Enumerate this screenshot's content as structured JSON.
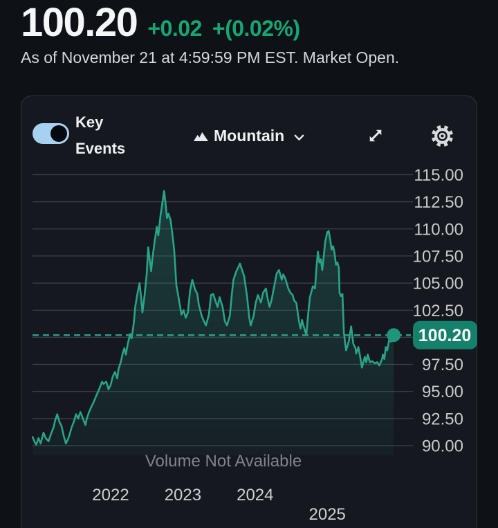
{
  "header": {
    "price": "100.20",
    "change": "+0.02",
    "change_pct": "+(0.02%)",
    "change_color": "#17a673",
    "as_of": "As of November 21 at 4:59:59 PM EST. Market Open."
  },
  "toolbar": {
    "key_events_label": "Key Events",
    "key_events_on": true,
    "toggle_color": "#a7d1f0",
    "chart_type_label": "Mountain",
    "icons": {
      "chart_type": "mountain-icon",
      "dropdown": "chevron-down-icon",
      "expand": "expand-arrows-icon",
      "settings": "gear-icon"
    }
  },
  "chart_data": {
    "type": "area",
    "title": "5-year price history",
    "x_unit": "year (decimal)",
    "x_range": [
      2020.92,
      2025.92
    ],
    "y_range": [
      90,
      115
    ],
    "grid": true,
    "legend": "none",
    "line_color": "#2aa489",
    "dot_color": "#1f9579",
    "badge_color": "#15806b",
    "grid_color": "#3c4349",
    "axis_text_color": "#c7cace",
    "current_price": 100.2,
    "current_price_label": "100.20",
    "volume_note": "Volume Not Available",
    "y_grid_values": [
      115,
      112.5,
      110,
      107.5,
      105,
      102.5,
      100,
      97.5,
      95,
      92.5,
      90
    ],
    "y_ticks": [
      {
        "value": 115,
        "label": "115.00"
      },
      {
        "value": 112.5,
        "label": "112.50"
      },
      {
        "value": 110,
        "label": "110.00"
      },
      {
        "value": 107.5,
        "label": "107.50"
      },
      {
        "value": 105,
        "label": "105.00"
      },
      {
        "value": 102.5,
        "label": "102.50"
      },
      {
        "value": 97.5,
        "label": "97.50"
      },
      {
        "value": 95,
        "label": "95.00"
      },
      {
        "value": 92.5,
        "label": "92.50"
      },
      {
        "value": 90,
        "label": "90.00"
      }
    ],
    "x_ticks": [
      {
        "year": 2022,
        "label": "2022",
        "row": 1
      },
      {
        "year": 2023,
        "label": "2023",
        "row": 1
      },
      {
        "year": 2024,
        "label": "2024",
        "row": 1
      },
      {
        "year": 2025,
        "label": "2025",
        "row": 2
      }
    ],
    "series": [
      {
        "name": "price",
        "points": [
          [
            2020.92,
            90.8
          ],
          [
            2020.95,
            90.3
          ],
          [
            2020.97,
            90.1
          ],
          [
            2021.0,
            90.7
          ],
          [
            2021.03,
            90.2
          ],
          [
            2021.07,
            91.2
          ],
          [
            2021.1,
            90.7
          ],
          [
            2021.14,
            90.4
          ],
          [
            2021.17,
            91.0
          ],
          [
            2021.21,
            91.7
          ],
          [
            2021.23,
            92.3
          ],
          [
            2021.26,
            92.9
          ],
          [
            2021.29,
            92.2
          ],
          [
            2021.32,
            91.8
          ],
          [
            2021.35,
            90.9
          ],
          [
            2021.38,
            90.2
          ],
          [
            2021.41,
            90.6
          ],
          [
            2021.43,
            91.0
          ],
          [
            2021.46,
            91.7
          ],
          [
            2021.49,
            92.2
          ],
          [
            2021.52,
            92.9
          ],
          [
            2021.55,
            92.5
          ],
          [
            2021.58,
            93.1
          ],
          [
            2021.61,
            92.6
          ],
          [
            2021.65,
            91.9
          ],
          [
            2021.67,
            92.5
          ],
          [
            2021.7,
            93.1
          ],
          [
            2021.74,
            93.7
          ],
          [
            2021.77,
            94.1
          ],
          [
            2021.8,
            94.6
          ],
          [
            2021.84,
            95.2
          ],
          [
            2021.88,
            95.9
          ],
          [
            2021.9,
            95.7
          ],
          [
            2021.94,
            95.9
          ],
          [
            2021.97,
            95.2
          ],
          [
            2022.0,
            95.6
          ],
          [
            2022.03,
            96.4
          ],
          [
            2022.06,
            96.8
          ],
          [
            2022.09,
            96.2
          ],
          [
            2022.11,
            97.1
          ],
          [
            2022.14,
            97.7
          ],
          [
            2022.17,
            98.6
          ],
          [
            2022.19,
            99.0
          ],
          [
            2022.21,
            98.4
          ],
          [
            2022.24,
            99.5
          ],
          [
            2022.27,
            100.3
          ],
          [
            2022.29,
            99.9
          ],
          [
            2022.32,
            101.3
          ],
          [
            2022.34,
            102.8
          ],
          [
            2022.37,
            104.0
          ],
          [
            2022.4,
            105.0
          ],
          [
            2022.42,
            103.8
          ],
          [
            2022.44,
            102.3
          ],
          [
            2022.47,
            103.9
          ],
          [
            2022.5,
            105.9
          ],
          [
            2022.52,
            108.3
          ],
          [
            2022.54,
            107.2
          ],
          [
            2022.56,
            106.1
          ],
          [
            2022.58,
            107.4
          ],
          [
            2022.61,
            108.9
          ],
          [
            2022.64,
            110.2
          ],
          [
            2022.66,
            109.4
          ],
          [
            2022.69,
            111.2
          ],
          [
            2022.72,
            112.6
          ],
          [
            2022.74,
            113.5
          ],
          [
            2022.76,
            112.4
          ],
          [
            2022.78,
            111.0
          ],
          [
            2022.8,
            111.4
          ],
          [
            2022.83,
            110.8
          ],
          [
            2022.86,
            109.2
          ],
          [
            2022.88,
            108.0
          ],
          [
            2022.91,
            104.8
          ],
          [
            2022.94,
            103.7
          ],
          [
            2022.98,
            102.1
          ],
          [
            2023.01,
            102.5
          ],
          [
            2023.04,
            101.8
          ],
          [
            2023.07,
            102.3
          ],
          [
            2023.1,
            104.3
          ],
          [
            2023.13,
            105.3
          ],
          [
            2023.17,
            104.4
          ],
          [
            2023.2,
            104.0
          ],
          [
            2023.22,
            103.0
          ],
          [
            2023.26,
            102.0
          ],
          [
            2023.29,
            101.5
          ],
          [
            2023.32,
            101.1
          ],
          [
            2023.36,
            102.1
          ],
          [
            2023.39,
            103.9
          ],
          [
            2023.42,
            104.0
          ],
          [
            2023.46,
            103.2
          ],
          [
            2023.48,
            102.8
          ],
          [
            2023.51,
            103.7
          ],
          [
            2023.55,
            102.8
          ],
          [
            2023.58,
            101.5
          ],
          [
            2023.61,
            101.1
          ],
          [
            2023.65,
            102.0
          ],
          [
            2023.68,
            104.1
          ],
          [
            2023.7,
            105.3
          ],
          [
            2023.74,
            106.1
          ],
          [
            2023.77,
            106.5
          ],
          [
            2023.79,
            106.8
          ],
          [
            2023.82,
            106.2
          ],
          [
            2023.85,
            105.6
          ],
          [
            2023.89,
            103.7
          ],
          [
            2023.92,
            101.8
          ],
          [
            2023.94,
            101.1
          ],
          [
            2023.98,
            102.0
          ],
          [
            2024.01,
            103.2
          ],
          [
            2024.04,
            103.9
          ],
          [
            2024.08,
            103.2
          ],
          [
            2024.11,
            104.1
          ],
          [
            2024.15,
            104.5
          ],
          [
            2024.17,
            103.7
          ],
          [
            2024.2,
            102.8
          ],
          [
            2024.23,
            103.5
          ],
          [
            2024.27,
            104.9
          ],
          [
            2024.3,
            105.9
          ],
          [
            2024.33,
            106.2
          ],
          [
            2024.37,
            105.3
          ],
          [
            2024.39,
            105.8
          ],
          [
            2024.42,
            105.4
          ],
          [
            2024.46,
            104.5
          ],
          [
            2024.49,
            104.1
          ],
          [
            2024.52,
            103.9
          ],
          [
            2024.54,
            103.4
          ],
          [
            2024.57,
            103.2
          ],
          [
            2024.61,
            101.4
          ],
          [
            2024.63,
            100.8
          ],
          [
            2024.65,
            101.6
          ],
          [
            2024.67,
            101.1
          ],
          [
            2024.71,
            100.2
          ],
          [
            2024.73,
            101.8
          ],
          [
            2024.76,
            103.7
          ],
          [
            2024.8,
            104.7
          ],
          [
            2024.83,
            104.5
          ],
          [
            2024.85,
            106.4
          ],
          [
            2024.87,
            107.9
          ],
          [
            2024.89,
            106.9
          ],
          [
            2024.91,
            107.2
          ],
          [
            2024.93,
            106.2
          ],
          [
            2024.95,
            107.4
          ],
          [
            2024.97,
            108.8
          ],
          [
            2025.0,
            109.7
          ],
          [
            2025.02,
            109.8
          ],
          [
            2025.04,
            109.0
          ],
          [
            2025.06,
            108.1
          ],
          [
            2025.08,
            108.4
          ],
          [
            2025.1,
            107.8
          ],
          [
            2025.12,
            106.7
          ],
          [
            2025.14,
            106.9
          ],
          [
            2025.16,
            106.4
          ],
          [
            2025.17,
            104.1
          ],
          [
            2025.19,
            103.8
          ],
          [
            2025.21,
            104.0
          ],
          [
            2025.23,
            100.4
          ],
          [
            2025.26,
            98.8
          ],
          [
            2025.28,
            99.2
          ],
          [
            2025.3,
            99.7
          ],
          [
            2025.33,
            101.0
          ],
          [
            2025.36,
            99.4
          ],
          [
            2025.39,
            99.0
          ],
          [
            2025.4,
            98.5
          ],
          [
            2025.43,
            99.1
          ],
          [
            2025.45,
            98.4
          ],
          [
            2025.48,
            97.2
          ],
          [
            2025.52,
            98.2
          ],
          [
            2025.54,
            97.7
          ],
          [
            2025.56,
            98.4
          ],
          [
            2025.59,
            97.7
          ],
          [
            2025.62,
            97.8
          ],
          [
            2025.66,
            97.6
          ],
          [
            2025.69,
            97.7
          ],
          [
            2025.72,
            97.4
          ],
          [
            2025.76,
            98.0
          ],
          [
            2025.77,
            98.4
          ],
          [
            2025.79,
            98.0
          ],
          [
            2025.81,
            99.1
          ],
          [
            2025.83,
            98.8
          ],
          [
            2025.86,
            99.9
          ],
          [
            2025.88,
            99.6
          ],
          [
            2025.9,
            99.9
          ],
          [
            2025.92,
            100.2
          ]
        ]
      }
    ]
  }
}
